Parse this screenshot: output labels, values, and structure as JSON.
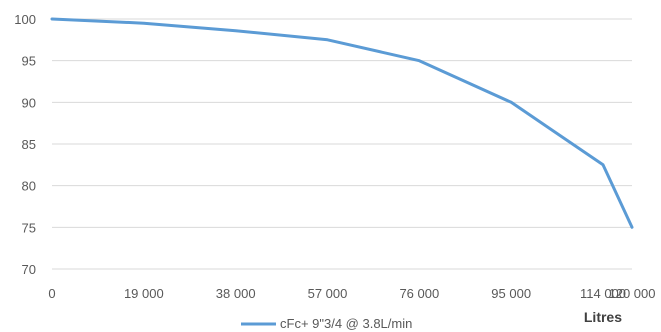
{
  "chart_data": {
    "type": "line",
    "x": [
      0,
      19000,
      38000,
      57000,
      76000,
      95000,
      114000,
      120000
    ],
    "x_tick_labels": [
      "0",
      "19 000",
      "38 000",
      "57 000",
      "76 000",
      "95 000",
      "114 000",
      "120 000"
    ],
    "y_tick_labels": [
      "70",
      "75",
      "80",
      "85",
      "90",
      "95",
      "100"
    ],
    "ylim": [
      70,
      100
    ],
    "xlabel": "Litres",
    "ylabel": "",
    "title": "",
    "grid": true,
    "legend": "bottom",
    "series": [
      {
        "name": "cFc+ 9\"3/4 @ 3.8L/min",
        "color": "#5b9bd5",
        "values": [
          100,
          99.5,
          98.6,
          97.5,
          95,
          90,
          82.5,
          75
        ]
      }
    ]
  }
}
